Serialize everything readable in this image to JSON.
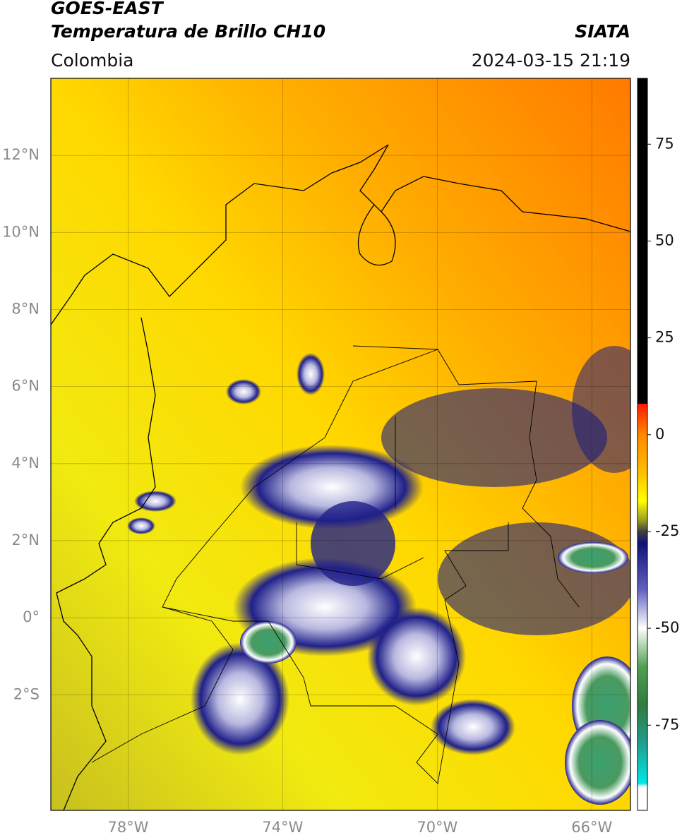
{
  "header": {
    "title": "GOES-EAST",
    "subtitle": "Temperatura de Brillo CH10",
    "source": "SIATA",
    "region": "Colombia",
    "datetime": "2024-03-15 21:19"
  },
  "map": {
    "xlim": [
      -80,
      -65
    ],
    "ylim": [
      -5,
      14
    ],
    "xticks": [
      {
        "value": -78,
        "label": "78°W"
      },
      {
        "value": -74,
        "label": "74°W"
      },
      {
        "value": -70,
        "label": "70°W"
      },
      {
        "value": -66,
        "label": "66°W"
      }
    ],
    "yticks": [
      {
        "value": 12,
        "label": "12°N"
      },
      {
        "value": 10,
        "label": "10°N"
      },
      {
        "value": 8,
        "label": "8°N"
      },
      {
        "value": 6,
        "label": "6°N"
      },
      {
        "value": 4,
        "label": "4°N"
      },
      {
        "value": 2,
        "label": "2°N"
      },
      {
        "value": 0,
        "label": "0°"
      },
      {
        "value": -2,
        "label": "2°S"
      }
    ],
    "grid": true
  },
  "colorbar": {
    "lim": [
      -97,
      92
    ],
    "ticks": [
      75,
      50,
      25,
      0,
      -25,
      -50,
      -75
    ]
  }
}
